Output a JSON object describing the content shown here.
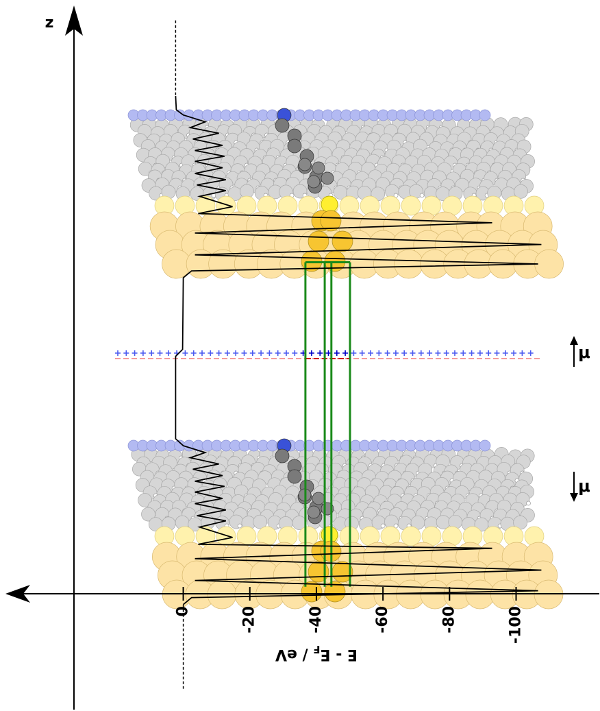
{
  "chart_data": {
    "type": "line",
    "xlabel": [
      "E - E",
      "F",
      " / eV"
    ],
    "ylabel": "z",
    "dipole_labels": [
      "μ",
      "μ"
    ],
    "xlim": [
      53,
      -125
    ],
    "xticks": [
      0,
      -20,
      -40,
      -60,
      -80,
      -100
    ],
    "ylim": [
      -20,
      102
    ],
    "series": [
      {
        "color": "#000000",
        "dashed": false,
        "x": [
          2.3,
          2.1,
          0,
          -6.6,
          -2.1,
          -10.7,
          -2.9,
          -11.8,
          -3.5,
          -12.4,
          -3.5,
          -11.8,
          -3.5,
          -12.8,
          -4.1,
          -12.8,
          -4.9,
          -14.8,
          -4.5,
          -92.8,
          -3.5,
          -107.6,
          -3.5,
          -106.6,
          -2.5,
          0,
          0.2,
          2.3,
          2.3,
          0,
          -6.6,
          -2.1,
          -10.7,
          -2.9,
          -11.8,
          -3.5,
          -12.4,
          -3.5,
          -11.8,
          -3.5,
          -12.8,
          -4.1,
          -12.8,
          -4.9,
          -14.8,
          -4.5,
          -92.8,
          -3.5,
          -107.6,
          -3.5,
          -106.6,
          -2.5,
          0
        ],
        "values": [
          86.8,
          84.4,
          83.5,
          82.3,
          81.3,
          80.3,
          79.3,
          78.2,
          77.3,
          76.3,
          75.4,
          74.3,
          73.3,
          72.2,
          71.3,
          70.3,
          69.3,
          67.5,
          66.3,
          64.7,
          62.9,
          60.9,
          59.1,
          57.5,
          56.3,
          55.1,
          42.6,
          41.4,
          27.0,
          25.8,
          24.6,
          23.7,
          22.6,
          21.7,
          20.6,
          19.6,
          18.7,
          17.7,
          16.6,
          15.7,
          14.6,
          13.6,
          12.7,
          11.6,
          9.8,
          8.6,
          7.9,
          6.1,
          4.1,
          2.3,
          0.5,
          -0.7,
          -1.9
        ]
      },
      {
        "color": "#000000",
        "dashed": true,
        "x": [
          2.3,
          2.3
        ],
        "values": [
          100,
          86.8
        ]
      },
      {
        "color": "#000000",
        "dashed": true,
        "x": [
          0,
          0
        ],
        "values": [
          -1.9,
          -16.6
        ]
      }
    ],
    "core_levels": {
      "color": "#1a8a1a",
      "values": [
        -36.7,
        -42.5,
        -44.5,
        -50.1
      ],
      "zlim": [
        57.8,
        1.2
      ]
    }
  }
}
